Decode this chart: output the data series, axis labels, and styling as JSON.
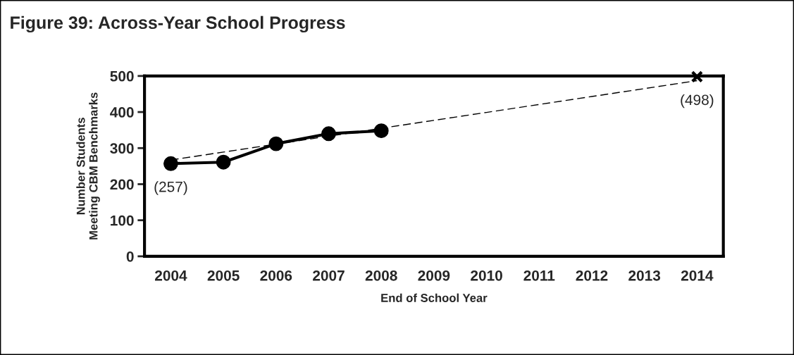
{
  "chart_data": {
    "type": "line",
    "title": "Figure 39: Across-Year School Progress",
    "xlabel": "End of School Year",
    "ylabel": "Number Students\nMeeting CBM Benchmarks",
    "categories": [
      "2004",
      "2005",
      "2006",
      "2007",
      "2008",
      "2009",
      "2010",
      "2011",
      "2012",
      "2013",
      "2014"
    ],
    "series": [
      {
        "color": "#000000",
        "marker": "circle",
        "line_style": "solid",
        "values": [
          257,
          261,
          312,
          340,
          348,
          null,
          null,
          null,
          null,
          null,
          null
        ],
        "value_labels": [
          "(257)",
          null,
          null,
          null,
          null,
          null,
          null,
          null,
          null,
          null,
          null
        ]
      },
      {
        "color": "#000000",
        "marker": "none",
        "line_style": "dashed",
        "values": [
          267,
          289,
          311,
          333,
          355,
          377,
          399,
          421,
          443,
          465,
          487
        ]
      },
      {
        "type": "scatter",
        "color": "#000000",
        "marker": "cross",
        "values": [
          null,
          null,
          null,
          null,
          null,
          null,
          null,
          null,
          null,
          null,
          498
        ],
        "value_labels": [
          null,
          null,
          null,
          null,
          null,
          null,
          null,
          null,
          null,
          null,
          "(498)"
        ]
      }
    ],
    "ylim": [
      0,
      500
    ],
    "yticks": [
      0,
      100,
      200,
      300,
      400,
      500
    ],
    "grid": false,
    "legend": false
  }
}
